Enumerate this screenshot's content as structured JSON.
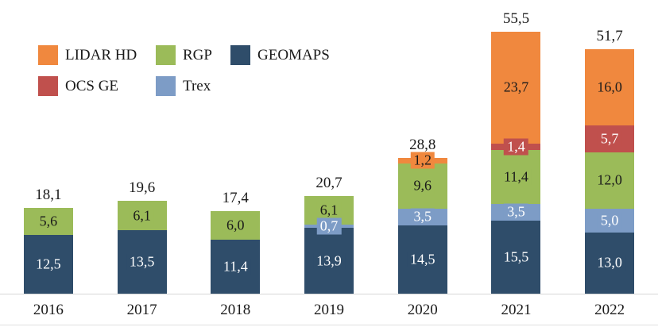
{
  "chart_data": {
    "type": "bar",
    "subtype": "stacked",
    "title": "",
    "xlabel": "",
    "ylabel": "",
    "ylim": [
      0,
      60
    ],
    "grid": false,
    "legend_position": "top-left",
    "decimal_separator": ",",
    "categories": [
      "2016",
      "2017",
      "2018",
      "2019",
      "2020",
      "2021",
      "2022"
    ],
    "series": [
      {
        "name": "GEOMAPS",
        "color": "#2f4d6a",
        "label_color": "#ffffff",
        "values": [
          12.5,
          13.5,
          11.4,
          13.9,
          14.5,
          15.5,
          13.0
        ],
        "labels": [
          "12,5",
          "13,5",
          "11,4",
          "13,9",
          "14,5",
          "15,5",
          "13,0"
        ]
      },
      {
        "name": "Trex",
        "color": "#7d9cc6",
        "label_color": "#ffffff",
        "values": [
          0,
          0,
          0,
          0.7,
          3.5,
          3.5,
          5.0
        ],
        "labels": [
          "",
          "",
          "",
          "0,7",
          "3,5",
          "3,5",
          "5,0"
        ]
      },
      {
        "name": "RGP",
        "color": "#9bbb59",
        "label_color": "#1a1a1a",
        "values": [
          5.6,
          6.1,
          6.0,
          6.1,
          9.6,
          11.4,
          12.0
        ],
        "labels": [
          "5,6",
          "6,1",
          "6,0",
          "6,1",
          "9,6",
          "11,4",
          "12,0"
        ]
      },
      {
        "name": "OCS GE",
        "color": "#c0504d",
        "label_color": "#ffffff",
        "values": [
          0,
          0,
          0,
          0,
          0,
          1.4,
          5.7
        ],
        "labels": [
          "",
          "",
          "",
          "",
          "",
          "1,4",
          "5,7"
        ]
      },
      {
        "name": "LIDAR HD",
        "color": "#f0883e",
        "label_color": "#1a1a1a",
        "values": [
          0,
          0,
          0,
          0,
          1.2,
          23.7,
          16.0
        ],
        "labels": [
          "",
          "",
          "",
          "",
          "1,2",
          "23,7",
          "16,0"
        ]
      }
    ],
    "totals": [
      "18,1",
      "19,6",
      "17,4",
      "20,7",
      "28,8",
      "55,5",
      "51,7"
    ],
    "legend_rows": [
      [
        "LIDAR HD",
        "RGP",
        "GEOMAPS"
      ],
      [
        "OCS GE",
        "Trex"
      ]
    ]
  }
}
